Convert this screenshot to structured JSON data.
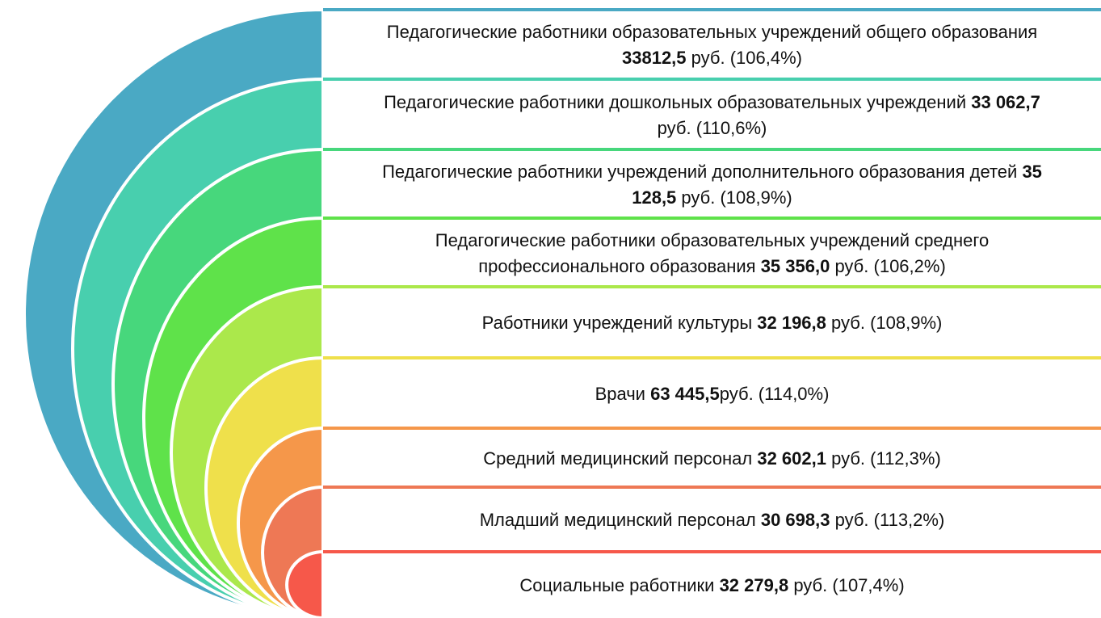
{
  "items": [
    {
      "before": "Педагогические работники образовательных учреждений общего образования ",
      "value": "33812,5",
      "after": " руб. (106,4%)",
      "color": "#4aa9c4"
    },
    {
      "before": "Педагогические работники дошкольных образовательных учреждений ",
      "value": "33 062,7",
      "after": " руб. (110,6%)",
      "color": "#48cfae"
    },
    {
      "before": "Педагогические работники учреждений дополнительного образования детей ",
      "value": "35 128,5",
      "after": " руб. (108,9%)",
      "color": "#47d77c"
    },
    {
      "before": "Педагогические работники образовательных учреждений среднего профессионального образования ",
      "value": "35 356,0",
      "after": " руб. (106,2%)",
      "color": "#5fe24a"
    },
    {
      "before": "Работники учреждений культуры ",
      "value": "32 196,8",
      "after": " руб. (108,9%)",
      "color": "#abe84b"
    },
    {
      "before": "Врачи ",
      "value": "63 445,5",
      "after": "руб. (114,0%)",
      "color": "#efe04b"
    },
    {
      "before": "Средний медицинский персонал ",
      "value": "32 602,1",
      "after": " руб. (112,3%)",
      "color": "#f5974a"
    },
    {
      "before": "Младший медицинский персонал ",
      "value": "30 698,3",
      "after": " руб. (113,2%)",
      "color": "#ee7855"
    },
    {
      "before": "Социальные работники ",
      "value": "32 279,8",
      "after": " руб. (107,4%)",
      "color": "#f6584a"
    }
  ]
}
